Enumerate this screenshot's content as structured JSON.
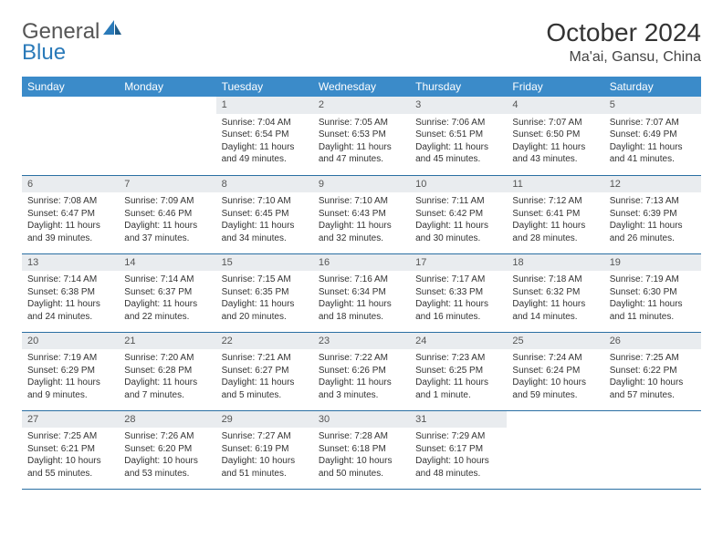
{
  "logo": {
    "word1": "General",
    "word2": "Blue"
  },
  "header": {
    "month_year": "October 2024",
    "location": "Ma'ai, Gansu, China"
  },
  "colors": {
    "header_bg": "#3b8bc9",
    "header_text": "#ffffff",
    "daynum_bg": "#e9ecef",
    "row_divider": "#2a6fa3",
    "logo_accent": "#2a7ab9"
  },
  "weekdays": [
    "Sunday",
    "Monday",
    "Tuesday",
    "Wednesday",
    "Thursday",
    "Friday",
    "Saturday"
  ],
  "layout": {
    "first_weekday_index": 2,
    "days_in_month": 31
  },
  "days": {
    "1": {
      "sunrise": "Sunrise: 7:04 AM",
      "sunset": "Sunset: 6:54 PM",
      "daylight": "Daylight: 11 hours and 49 minutes."
    },
    "2": {
      "sunrise": "Sunrise: 7:05 AM",
      "sunset": "Sunset: 6:53 PM",
      "daylight": "Daylight: 11 hours and 47 minutes."
    },
    "3": {
      "sunrise": "Sunrise: 7:06 AM",
      "sunset": "Sunset: 6:51 PM",
      "daylight": "Daylight: 11 hours and 45 minutes."
    },
    "4": {
      "sunrise": "Sunrise: 7:07 AM",
      "sunset": "Sunset: 6:50 PM",
      "daylight": "Daylight: 11 hours and 43 minutes."
    },
    "5": {
      "sunrise": "Sunrise: 7:07 AM",
      "sunset": "Sunset: 6:49 PM",
      "daylight": "Daylight: 11 hours and 41 minutes."
    },
    "6": {
      "sunrise": "Sunrise: 7:08 AM",
      "sunset": "Sunset: 6:47 PM",
      "daylight": "Daylight: 11 hours and 39 minutes."
    },
    "7": {
      "sunrise": "Sunrise: 7:09 AM",
      "sunset": "Sunset: 6:46 PM",
      "daylight": "Daylight: 11 hours and 37 minutes."
    },
    "8": {
      "sunrise": "Sunrise: 7:10 AM",
      "sunset": "Sunset: 6:45 PM",
      "daylight": "Daylight: 11 hours and 34 minutes."
    },
    "9": {
      "sunrise": "Sunrise: 7:10 AM",
      "sunset": "Sunset: 6:43 PM",
      "daylight": "Daylight: 11 hours and 32 minutes."
    },
    "10": {
      "sunrise": "Sunrise: 7:11 AM",
      "sunset": "Sunset: 6:42 PM",
      "daylight": "Daylight: 11 hours and 30 minutes."
    },
    "11": {
      "sunrise": "Sunrise: 7:12 AM",
      "sunset": "Sunset: 6:41 PM",
      "daylight": "Daylight: 11 hours and 28 minutes."
    },
    "12": {
      "sunrise": "Sunrise: 7:13 AM",
      "sunset": "Sunset: 6:39 PM",
      "daylight": "Daylight: 11 hours and 26 minutes."
    },
    "13": {
      "sunrise": "Sunrise: 7:14 AM",
      "sunset": "Sunset: 6:38 PM",
      "daylight": "Daylight: 11 hours and 24 minutes."
    },
    "14": {
      "sunrise": "Sunrise: 7:14 AM",
      "sunset": "Sunset: 6:37 PM",
      "daylight": "Daylight: 11 hours and 22 minutes."
    },
    "15": {
      "sunrise": "Sunrise: 7:15 AM",
      "sunset": "Sunset: 6:35 PM",
      "daylight": "Daylight: 11 hours and 20 minutes."
    },
    "16": {
      "sunrise": "Sunrise: 7:16 AM",
      "sunset": "Sunset: 6:34 PM",
      "daylight": "Daylight: 11 hours and 18 minutes."
    },
    "17": {
      "sunrise": "Sunrise: 7:17 AM",
      "sunset": "Sunset: 6:33 PM",
      "daylight": "Daylight: 11 hours and 16 minutes."
    },
    "18": {
      "sunrise": "Sunrise: 7:18 AM",
      "sunset": "Sunset: 6:32 PM",
      "daylight": "Daylight: 11 hours and 14 minutes."
    },
    "19": {
      "sunrise": "Sunrise: 7:19 AM",
      "sunset": "Sunset: 6:30 PM",
      "daylight": "Daylight: 11 hours and 11 minutes."
    },
    "20": {
      "sunrise": "Sunrise: 7:19 AM",
      "sunset": "Sunset: 6:29 PM",
      "daylight": "Daylight: 11 hours and 9 minutes."
    },
    "21": {
      "sunrise": "Sunrise: 7:20 AM",
      "sunset": "Sunset: 6:28 PM",
      "daylight": "Daylight: 11 hours and 7 minutes."
    },
    "22": {
      "sunrise": "Sunrise: 7:21 AM",
      "sunset": "Sunset: 6:27 PM",
      "daylight": "Daylight: 11 hours and 5 minutes."
    },
    "23": {
      "sunrise": "Sunrise: 7:22 AM",
      "sunset": "Sunset: 6:26 PM",
      "daylight": "Daylight: 11 hours and 3 minutes."
    },
    "24": {
      "sunrise": "Sunrise: 7:23 AM",
      "sunset": "Sunset: 6:25 PM",
      "daylight": "Daylight: 11 hours and 1 minute."
    },
    "25": {
      "sunrise": "Sunrise: 7:24 AM",
      "sunset": "Sunset: 6:24 PM",
      "daylight": "Daylight: 10 hours and 59 minutes."
    },
    "26": {
      "sunrise": "Sunrise: 7:25 AM",
      "sunset": "Sunset: 6:22 PM",
      "daylight": "Daylight: 10 hours and 57 minutes."
    },
    "27": {
      "sunrise": "Sunrise: 7:25 AM",
      "sunset": "Sunset: 6:21 PM",
      "daylight": "Daylight: 10 hours and 55 minutes."
    },
    "28": {
      "sunrise": "Sunrise: 7:26 AM",
      "sunset": "Sunset: 6:20 PM",
      "daylight": "Daylight: 10 hours and 53 minutes."
    },
    "29": {
      "sunrise": "Sunrise: 7:27 AM",
      "sunset": "Sunset: 6:19 PM",
      "daylight": "Daylight: 10 hours and 51 minutes."
    },
    "30": {
      "sunrise": "Sunrise: 7:28 AM",
      "sunset": "Sunset: 6:18 PM",
      "daylight": "Daylight: 10 hours and 50 minutes."
    },
    "31": {
      "sunrise": "Sunrise: 7:29 AM",
      "sunset": "Sunset: 6:17 PM",
      "daylight": "Daylight: 10 hours and 48 minutes."
    }
  }
}
